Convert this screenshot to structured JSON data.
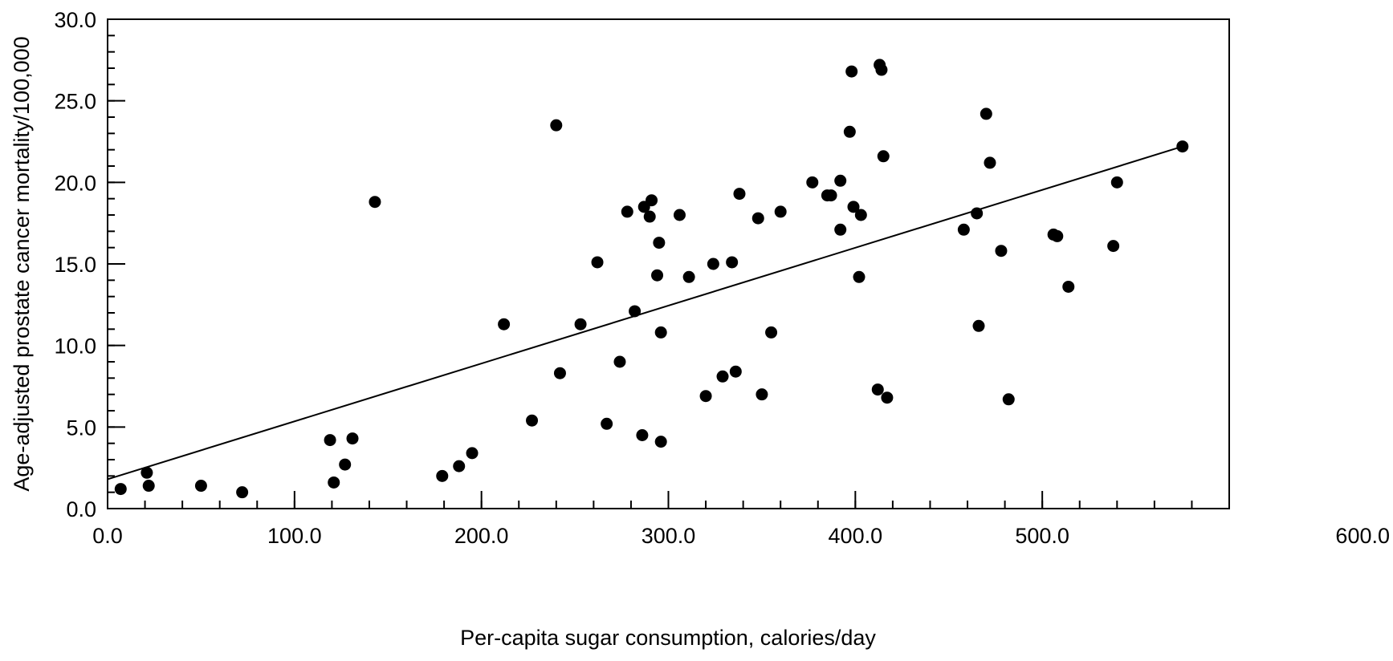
{
  "chart_data": {
    "type": "scatter",
    "title": "",
    "xlabel": "Per-capita sugar consumption, calories/day",
    "ylabel": "Age-adjusted prostate cancer mortality/100,000",
    "xlim": [
      0,
      600
    ],
    "ylim": [
      0,
      30
    ],
    "x_ticks": [
      0,
      100,
      200,
      300,
      400,
      500,
      600
    ],
    "x_tick_labels": [
      "0.0",
      "100.0",
      "200.0",
      "300.0",
      "400.0",
      "500.0",
      "600.0"
    ],
    "y_ticks": [
      0,
      5,
      10,
      15,
      20,
      25,
      30
    ],
    "y_tick_labels": [
      "0.0",
      "5.0",
      "10.0",
      "15.0",
      "20.0",
      "25.0",
      "30.0"
    ],
    "minor_ticks": {
      "x_step": 20,
      "y_step": 1
    },
    "grid": false,
    "legend": "none",
    "colors": {
      "points": "#000000",
      "trendline": "#000000",
      "axes": "#000000"
    },
    "points": [
      [
        7,
        1.2
      ],
      [
        21,
        2.2
      ],
      [
        22,
        1.4
      ],
      [
        50,
        1.4
      ],
      [
        72,
        1.0
      ],
      [
        119,
        4.2
      ],
      [
        121,
        1.6
      ],
      [
        127,
        2.7
      ],
      [
        131,
        4.3
      ],
      [
        143,
        18.8
      ],
      [
        179,
        2.0
      ],
      [
        188,
        2.6
      ],
      [
        195,
        3.4
      ],
      [
        212,
        11.3
      ],
      [
        227,
        5.4
      ],
      [
        240,
        23.5
      ],
      [
        242,
        8.3
      ],
      [
        253,
        11.3
      ],
      [
        262,
        15.1
      ],
      [
        267,
        5.2
      ],
      [
        274,
        9.0
      ],
      [
        278,
        18.2
      ],
      [
        282,
        12.1
      ],
      [
        286,
        4.5
      ],
      [
        287,
        18.5
      ],
      [
        290,
        17.9
      ],
      [
        291,
        18.9
      ],
      [
        294,
        14.3
      ],
      [
        295,
        16.3
      ],
      [
        296,
        10.8
      ],
      [
        296,
        4.1
      ],
      [
        306,
        18.0
      ],
      [
        311,
        14.2
      ],
      [
        320,
        6.9
      ],
      [
        324,
        15.0
      ],
      [
        329,
        8.1
      ],
      [
        334,
        15.1
      ],
      [
        336,
        8.4
      ],
      [
        338,
        19.3
      ],
      [
        348,
        17.8
      ],
      [
        350,
        7.0
      ],
      [
        355,
        10.8
      ],
      [
        360,
        18.2
      ],
      [
        377,
        20.0
      ],
      [
        385,
        19.2
      ],
      [
        387,
        19.2
      ],
      [
        392,
        17.1
      ],
      [
        392,
        20.1
      ],
      [
        397,
        23.1
      ],
      [
        398,
        26.8
      ],
      [
        399,
        18.5
      ],
      [
        402,
        14.2
      ],
      [
        403,
        18.0
      ],
      [
        412,
        7.3
      ],
      [
        413,
        27.2
      ],
      [
        414,
        26.9
      ],
      [
        415,
        21.6
      ],
      [
        417,
        6.8
      ],
      [
        458,
        17.1
      ],
      [
        465,
        18.1
      ],
      [
        466,
        11.2
      ],
      [
        470,
        24.2
      ],
      [
        472,
        21.2
      ],
      [
        478,
        15.8
      ],
      [
        482,
        6.7
      ],
      [
        506,
        16.8
      ],
      [
        508,
        16.7
      ],
      [
        514,
        13.6
      ],
      [
        538,
        16.1
      ],
      [
        540,
        20.0
      ],
      [
        575,
        22.2
      ]
    ],
    "trendline": {
      "type": "linear",
      "points": [
        [
          0,
          1.8
        ],
        [
          575,
          22.2
        ]
      ]
    }
  }
}
